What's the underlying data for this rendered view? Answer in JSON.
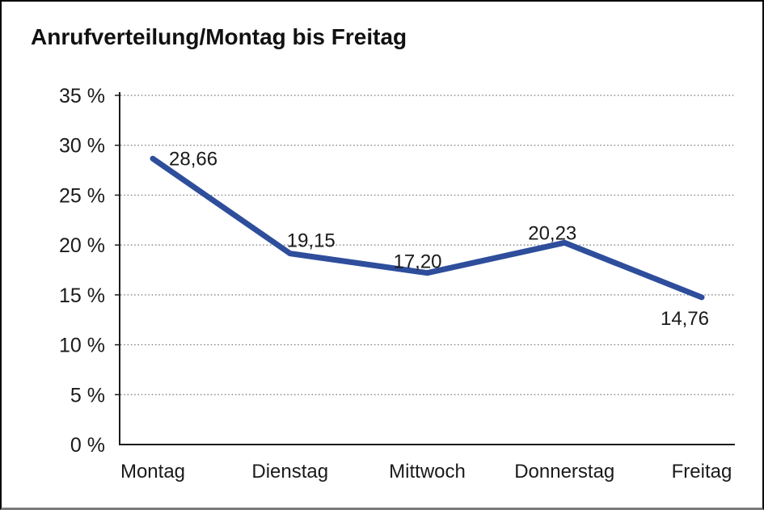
{
  "chart_data": {
    "type": "line",
    "title": "Anrufverteilung/Montag bis Freitag",
    "categories": [
      "Montag",
      "Dienstag",
      "Mittwoch",
      "Donnerstag",
      "Freitag"
    ],
    "values": [
      28.66,
      19.15,
      17.2,
      20.23,
      14.76
    ],
    "value_labels": [
      "28,66",
      "19,15",
      "17,20",
      "20,23",
      "14,76"
    ],
    "ylim": [
      0,
      35
    ],
    "y_tick_step": 5,
    "y_tick_labels": [
      "0 %",
      "5 %",
      "10 %",
      "15 %",
      "20 %",
      "25 %",
      "30 %",
      "35 %"
    ],
    "xlabel": "",
    "ylabel": "",
    "grid": "horizontal-dotted",
    "legend_position": "none",
    "line_color": "#2e4e9c",
    "text_color": "#1a1a1a",
    "grid_color": "#747474",
    "axis_color": "#1c1c1c",
    "background_color": "#ffffff",
    "frame_border_color": "#000000"
  }
}
